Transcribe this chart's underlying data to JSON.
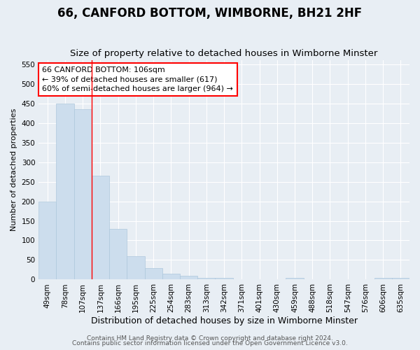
{
  "title": "66, CANFORD BOTTOM, WIMBORNE, BH21 2HF",
  "subtitle": "Size of property relative to detached houses in Wimborne Minster",
  "xlabel": "Distribution of detached houses by size in Wimborne Minster",
  "ylabel": "Number of detached properties",
  "footer1": "Contains HM Land Registry data © Crown copyright and database right 2024.",
  "footer2": "Contains public sector information licensed under the Open Government Licence v3.0.",
  "categories": [
    "49sqm",
    "78sqm",
    "107sqm",
    "137sqm",
    "166sqm",
    "195sqm",
    "225sqm",
    "254sqm",
    "283sqm",
    "313sqm",
    "342sqm",
    "371sqm",
    "401sqm",
    "430sqm",
    "459sqm",
    "488sqm",
    "518sqm",
    "547sqm",
    "576sqm",
    "606sqm",
    "635sqm"
  ],
  "values": [
    200,
    450,
    435,
    265,
    130,
    60,
    30,
    16,
    10,
    5,
    4,
    0,
    0,
    0,
    5,
    0,
    0,
    0,
    0,
    5,
    4
  ],
  "bar_color": "#ccdded",
  "bar_edge_color": "#aec8dc",
  "red_line_index": 2,
  "annotation_box_text_line1": "66 CANFORD BOTTOM: 106sqm",
  "annotation_box_text_line2": "← 39% of detached houses are smaller (617)",
  "annotation_box_text_line3": "60% of semi-detached houses are larger (964) →",
  "ylim": [
    0,
    560
  ],
  "yticks": [
    0,
    50,
    100,
    150,
    200,
    250,
    300,
    350,
    400,
    450,
    500,
    550
  ],
  "background_color": "#e8eef4",
  "plot_bg_color": "#e8eef4",
  "grid_color": "#ffffff",
  "title_fontsize": 12,
  "subtitle_fontsize": 9.5,
  "xlabel_fontsize": 9,
  "ylabel_fontsize": 8,
  "tick_fontsize": 7.5,
  "footer_fontsize": 6.5
}
